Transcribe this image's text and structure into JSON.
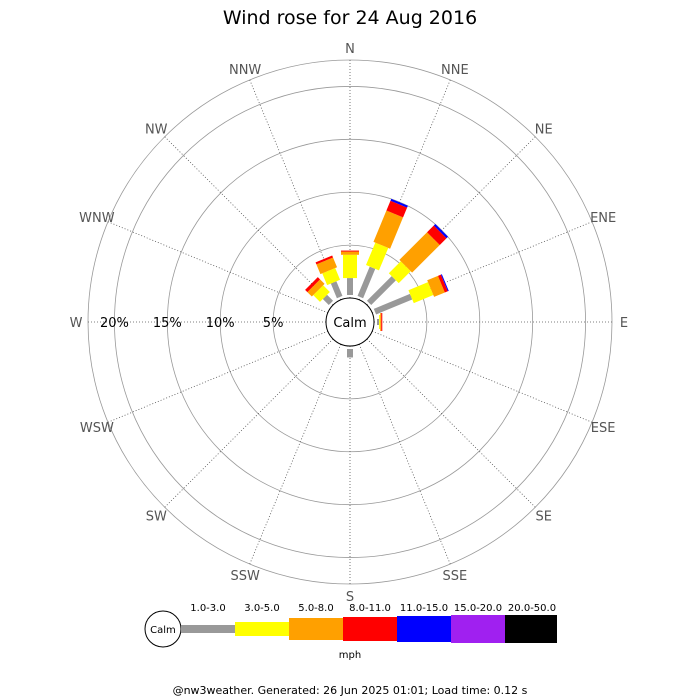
{
  "chart_data": {
    "type": "wind-rose",
    "title": "Wind rose for 24 Aug 2016",
    "directions": [
      "N",
      "NNE",
      "NE",
      "ENE",
      "E",
      "ESE",
      "SE",
      "SSE",
      "S",
      "SSW",
      "SW",
      "WSW",
      "W",
      "WNW",
      "NW",
      "NNW"
    ],
    "ring_labels": [
      "5%",
      "10%",
      "15%",
      "20%"
    ],
    "ring_values": [
      5,
      10,
      15,
      20
    ],
    "rmax_percent": 22.5,
    "calm_label": "Calm",
    "speed_bins": [
      {
        "label": "1.0-3.0",
        "color": "#999999"
      },
      {
        "label": "3.0-5.0",
        "color": "#ffff00"
      },
      {
        "label": "5.0-8.0",
        "color": "#ffa000"
      },
      {
        "label": "8.0-11.0",
        "color": "#ff0000"
      },
      {
        "label": "11.0-15.0",
        "color": "#0000ff"
      },
      {
        "label": "15.0-20.0",
        "color": "#a020f0"
      },
      {
        "label": "20.0-50.0",
        "color": "#000000"
      }
    ],
    "speed_unit": "mph",
    "series": [
      {
        "direction": "N",
        "values": [
          1.6,
          2.2,
          0.3,
          0.1,
          0,
          0,
          0
        ]
      },
      {
        "direction": "NNE",
        "values": [
          3.0,
          2.3,
          3.2,
          1.0,
          0.2,
          0,
          0
        ]
      },
      {
        "direction": "NE",
        "values": [
          3.3,
          1.6,
          3.7,
          0.9,
          0.2,
          0,
          0
        ]
      },
      {
        "direction": "ENE",
        "values": [
          3.7,
          2.0,
          1.1,
          0.3,
          0.1,
          0,
          0
        ]
      },
      {
        "direction": "E",
        "values": [
          0.2,
          0.1,
          0.1,
          0.1,
          0,
          0,
          0
        ]
      },
      {
        "direction": "ESE",
        "values": [
          0,
          0,
          0,
          0,
          0,
          0,
          0
        ]
      },
      {
        "direction": "SE",
        "values": [
          0,
          0,
          0,
          0,
          0,
          0,
          0
        ]
      },
      {
        "direction": "SSE",
        "values": [
          0,
          0,
          0,
          0,
          0,
          0,
          0
        ]
      },
      {
        "direction": "S",
        "values": [
          0.8,
          0,
          0,
          0,
          0,
          0,
          0
        ]
      },
      {
        "direction": "SSW",
        "values": [
          0,
          0,
          0,
          0,
          0,
          0,
          0
        ]
      },
      {
        "direction": "SW",
        "values": [
          0,
          0,
          0,
          0,
          0,
          0,
          0
        ]
      },
      {
        "direction": "WSW",
        "values": [
          0,
          0,
          0,
          0,
          0,
          0,
          0
        ]
      },
      {
        "direction": "W",
        "values": [
          0,
          0,
          0,
          0,
          0,
          0,
          0
        ]
      },
      {
        "direction": "WNW",
        "values": [
          0,
          0,
          0,
          0,
          0,
          0,
          0
        ]
      },
      {
        "direction": "NW",
        "values": [
          0.8,
          0.9,
          0.6,
          0.3,
          0,
          0,
          0
        ]
      },
      {
        "direction": "NNW",
        "values": [
          1.5,
          1.2,
          1.0,
          0.2,
          0,
          0,
          0
        ]
      }
    ]
  },
  "footer": "@nw3weather. Generated: 26 Jun 2025 01:01; Load time: 0.12 s"
}
